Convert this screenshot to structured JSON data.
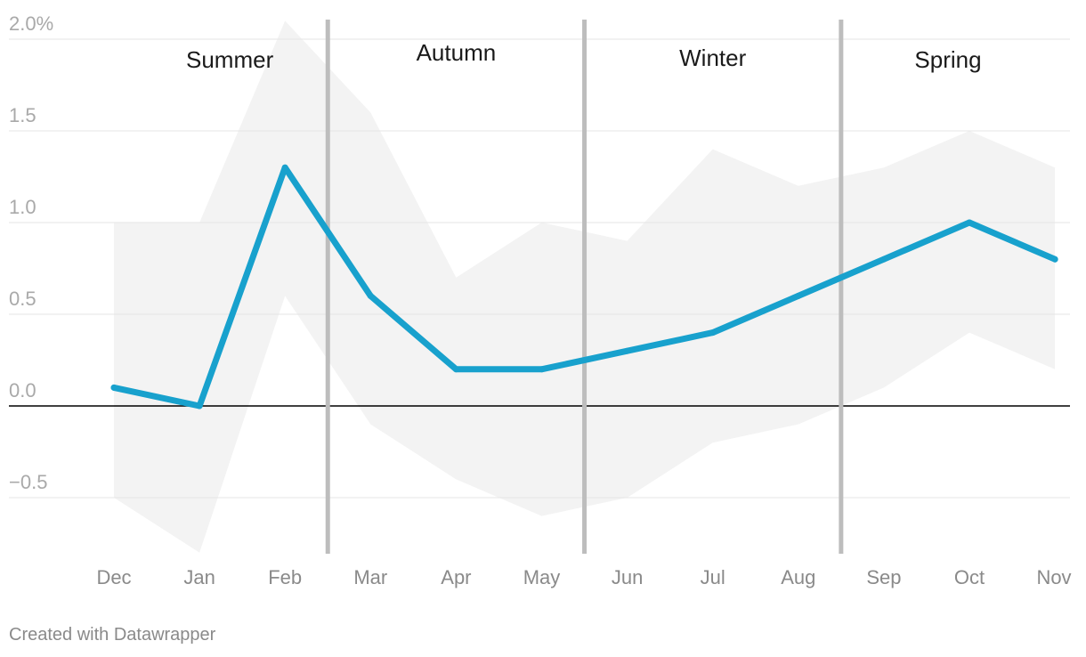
{
  "chart_data": {
    "type": "line",
    "categories": [
      "Dec",
      "Jan",
      "Feb",
      "Mar",
      "Apr",
      "May",
      "Jun",
      "Jul",
      "Aug",
      "Sep",
      "Oct",
      "Nov"
    ],
    "series": [
      {
        "values": [
          0.1,
          0.0,
          1.3,
          0.6,
          0.2,
          0.2,
          0.3,
          0.4,
          0.6,
          0.8,
          1.0,
          0.8
        ]
      }
    ],
    "range_band": {
      "upper": [
        1.0,
        1.0,
        2.1,
        1.6,
        0.7,
        1.0,
        0.9,
        1.4,
        1.2,
        1.3,
        1.5,
        1.3
      ],
      "lower": [
        -0.5,
        -0.8,
        0.6,
        -0.1,
        -0.4,
        -0.6,
        -0.5,
        -0.2,
        -0.1,
        0.1,
        0.4,
        0.2
      ]
    },
    "ylim": [
      -0.8,
      2.1
    ],
    "yticks": [
      {
        "value": 2.0,
        "label": "2.0%"
      },
      {
        "value": 1.5,
        "label": "1.5"
      },
      {
        "value": 1.0,
        "label": "1.0"
      },
      {
        "value": 0.5,
        "label": "0.5"
      },
      {
        "value": 0.0,
        "label": "0.0"
      },
      {
        "value": -0.5,
        "label": "−0.5"
      }
    ],
    "seasons": [
      {
        "label": "Summer",
        "from": 0,
        "to": 2.5
      },
      {
        "label": "Autumn",
        "from": 2.5,
        "to": 5.5
      },
      {
        "label": "Winter",
        "from": 5.5,
        "to": 8.5
      },
      {
        "label": "Spring",
        "from": 8.5,
        "to": 11
      }
    ],
    "season_dividers": [
      2.5,
      5.5,
      8.5
    ],
    "grid": true,
    "colors": {
      "line": "#18a1cd",
      "band": "#f3f3f3",
      "divider": "#bdbdbd",
      "grid": "#e5e5e5",
      "zero": "#000000"
    }
  },
  "footer": {
    "credit": "Created with Datawrapper"
  }
}
